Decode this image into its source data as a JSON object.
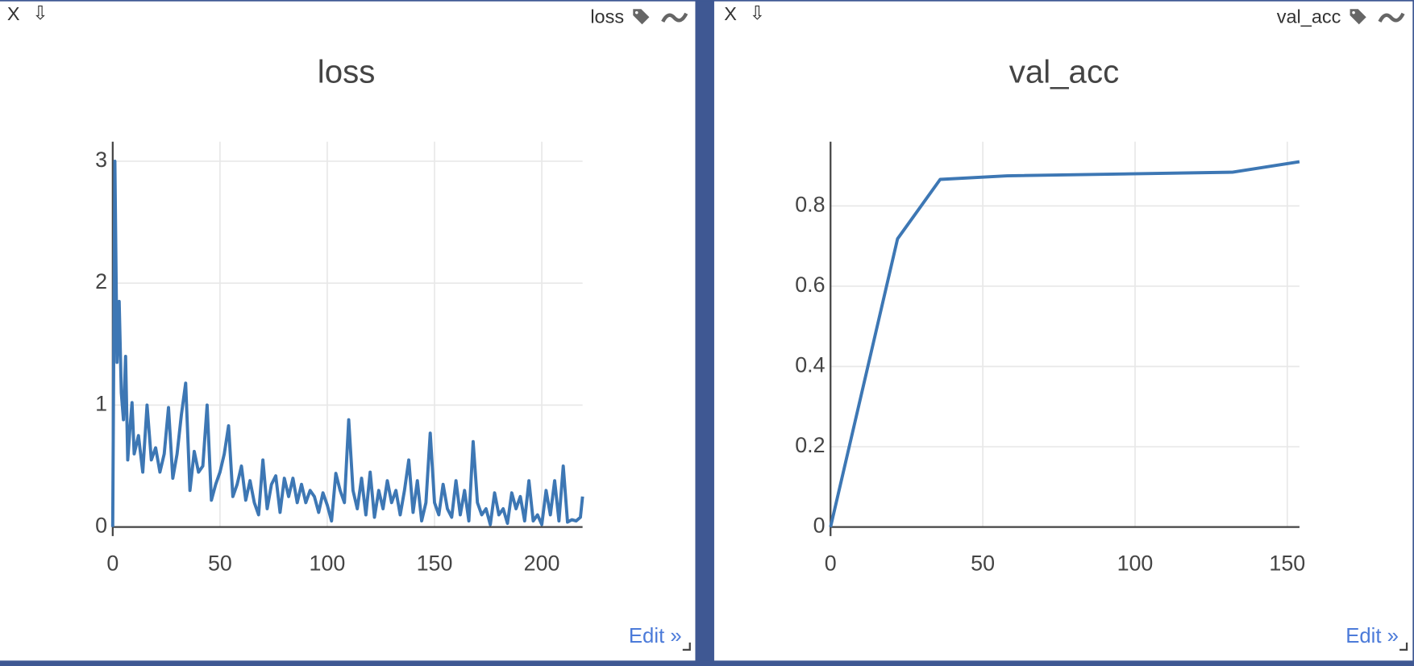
{
  "panes": [
    {
      "close": "X",
      "download": "⇩",
      "window_title": "loss",
      "edit": "Edit »"
    },
    {
      "close": "X",
      "download": "⇩",
      "window_title": "val_acc",
      "edit": "Edit »"
    }
  ],
  "chart_data": [
    {
      "type": "line",
      "title": "loss",
      "color": "#3d77b4",
      "x": [
        0,
        1,
        2,
        3,
        4,
        5,
        6,
        7,
        8,
        9,
        10,
        12,
        14,
        16,
        18,
        20,
        22,
        24,
        26,
        28,
        30,
        32,
        34,
        36,
        38,
        40,
        42,
        44,
        46,
        48,
        50,
        52,
        54,
        56,
        58,
        60,
        62,
        64,
        66,
        68,
        70,
        72,
        74,
        76,
        78,
        80,
        82,
        84,
        86,
        88,
        90,
        92,
        94,
        96,
        98,
        100,
        102,
        104,
        106,
        108,
        110,
        112,
        114,
        116,
        118,
        120,
        122,
        124,
        126,
        128,
        130,
        132,
        134,
        136,
        138,
        140,
        142,
        144,
        146,
        148,
        150,
        152,
        154,
        156,
        158,
        160,
        162,
        164,
        166,
        168,
        170,
        172,
        174,
        176,
        178,
        180,
        182,
        184,
        186,
        188,
        190,
        192,
        194,
        196,
        198,
        200,
        202,
        204,
        206,
        208,
        210,
        212,
        214,
        216,
        218,
        219
      ],
      "values": [
        0,
        3.0,
        1.35,
        1.85,
        1.1,
        0.88,
        1.4,
        0.55,
        0.8,
        1.02,
        0.6,
        0.75,
        0.45,
        1.0,
        0.55,
        0.65,
        0.45,
        0.6,
        0.98,
        0.4,
        0.6,
        0.92,
        1.18,
        0.3,
        0.62,
        0.45,
        0.5,
        1.0,
        0.22,
        0.35,
        0.45,
        0.6,
        0.83,
        0.25,
        0.35,
        0.5,
        0.22,
        0.38,
        0.2,
        0.1,
        0.55,
        0.15,
        0.35,
        0.42,
        0.12,
        0.4,
        0.25,
        0.4,
        0.2,
        0.35,
        0.2,
        0.3,
        0.25,
        0.12,
        0.28,
        0.18,
        0.05,
        0.44,
        0.3,
        0.2,
        0.88,
        0.3,
        0.15,
        0.4,
        0.1,
        0.45,
        0.08,
        0.3,
        0.15,
        0.38,
        0.2,
        0.3,
        0.1,
        0.3,
        0.55,
        0.12,
        0.38,
        0.05,
        0.2,
        0.77,
        0.2,
        0.1,
        0.35,
        0.15,
        0.08,
        0.38,
        0.1,
        0.3,
        0.05,
        0.7,
        0.2,
        0.1,
        0.15,
        0.02,
        0.28,
        0.1,
        0.15,
        0.03,
        0.28,
        0.15,
        0.25,
        0.05,
        0.38,
        0.05,
        0.1,
        0.02,
        0.3,
        0.1,
        0.38,
        0.05,
        0.5,
        0.04,
        0.06,
        0.05,
        0.08,
        0.25
      ],
      "xlim": [
        0,
        219
      ],
      "xticks": [
        0,
        50,
        100,
        150,
        200
      ],
      "ylim": [
        0,
        3.16
      ],
      "yticks": [
        0,
        1,
        2,
        3
      ],
      "grid": true
    },
    {
      "type": "line",
      "title": "val_acc",
      "color": "#3d77b4",
      "x": [
        0,
        22,
        36,
        58,
        132,
        154
      ],
      "values": [
        0,
        0.718,
        0.866,
        0.875,
        0.884,
        0.91
      ],
      "xlim": [
        0,
        154
      ],
      "xticks": [
        0,
        50,
        100,
        150
      ],
      "ylim": [
        0,
        0.96
      ],
      "yticks": [
        0,
        0.2,
        0.4,
        0.6,
        0.8
      ],
      "grid": true
    }
  ]
}
